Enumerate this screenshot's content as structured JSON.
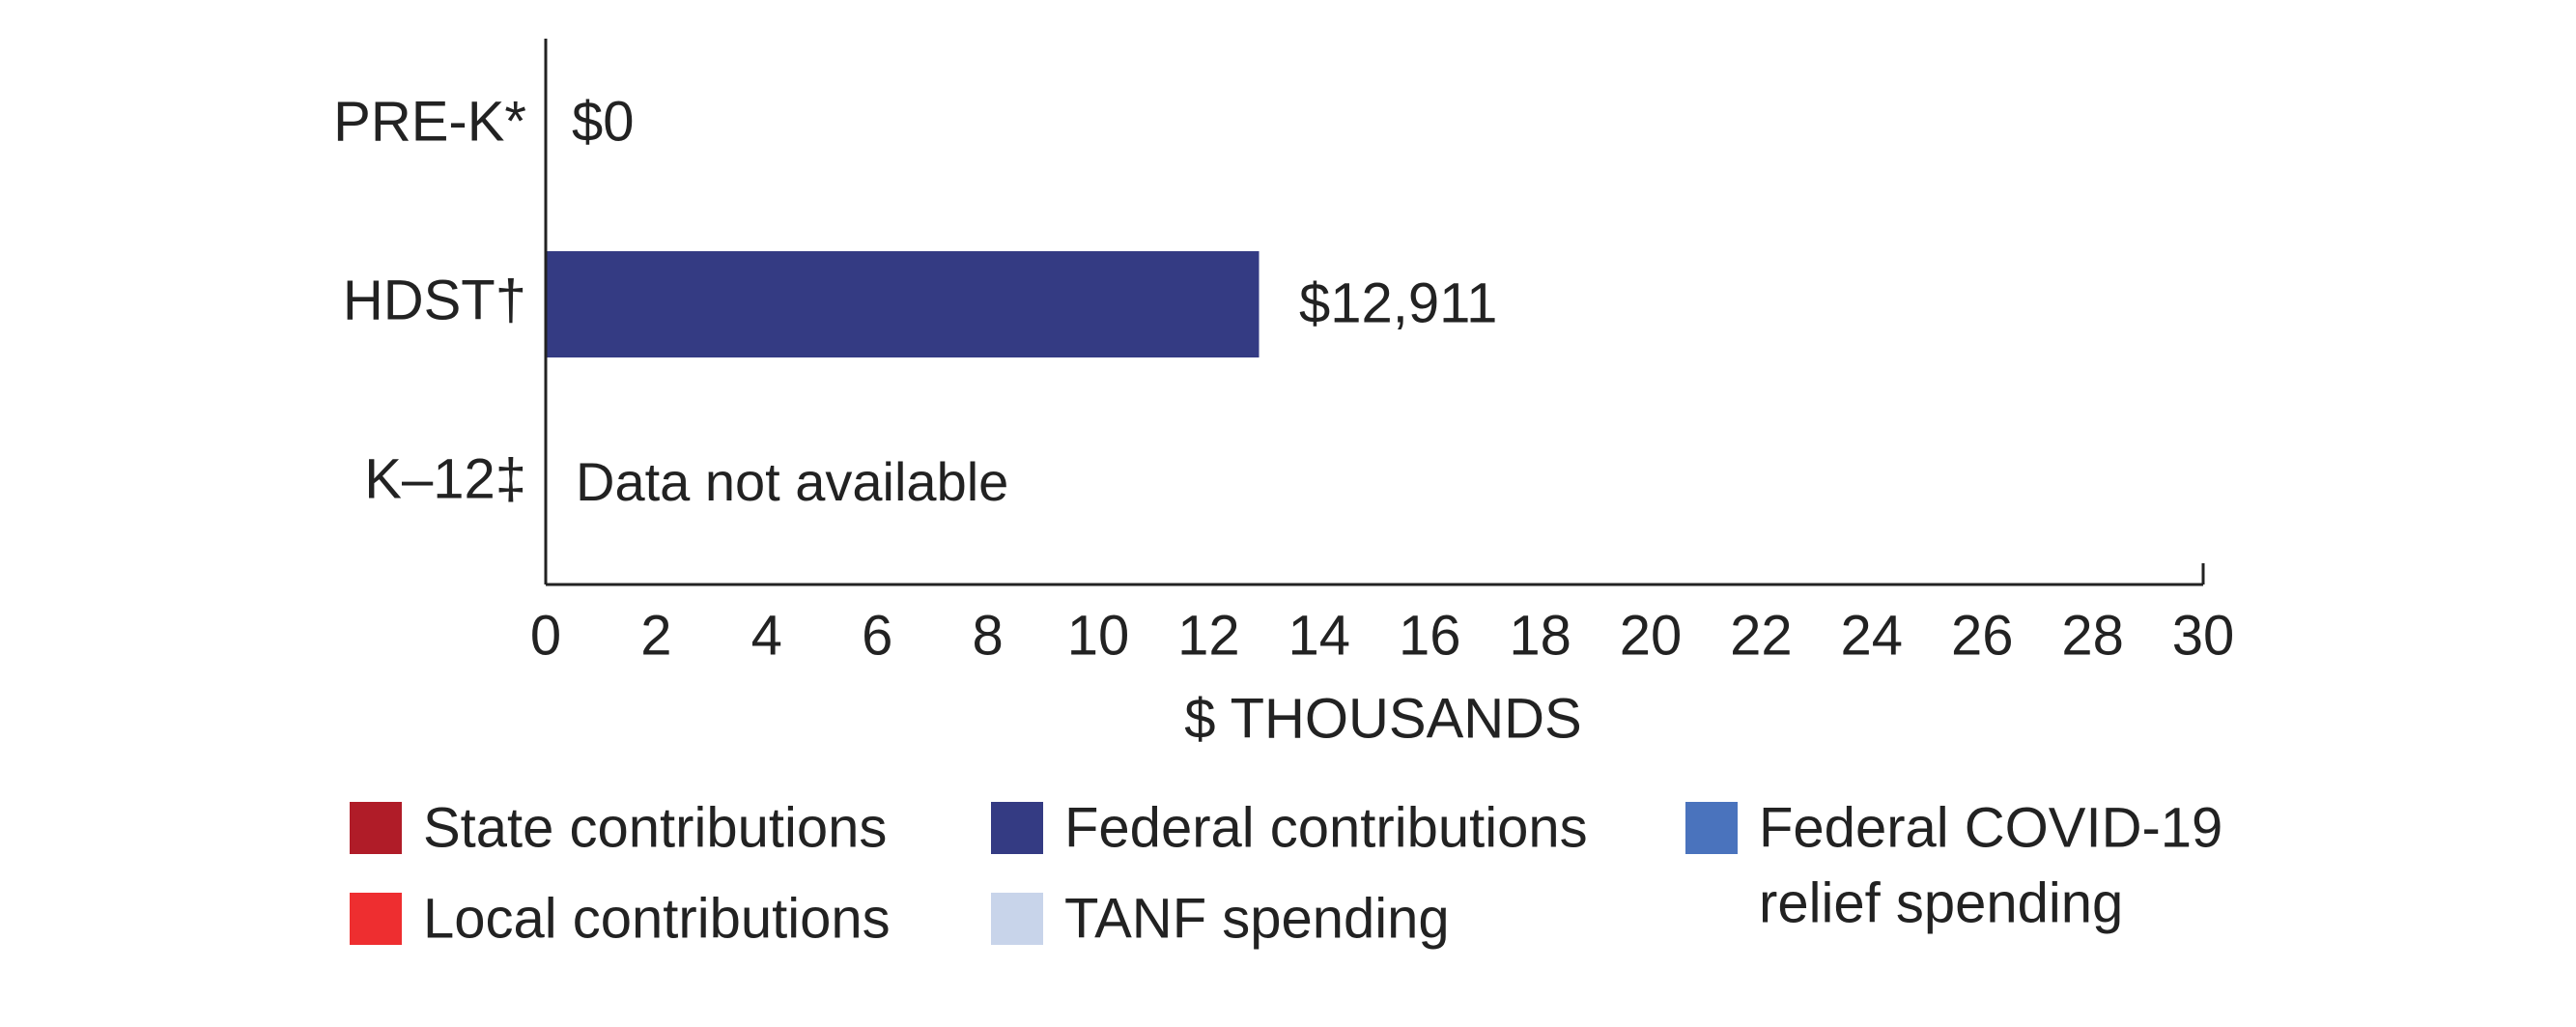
{
  "chart_data": {
    "type": "bar",
    "orientation": "horizontal",
    "categories": [
      "PRE-K*",
      "HDST†",
      "K–12‡"
    ],
    "series": [
      {
        "name": "State contributions",
        "values": [
          0,
          0,
          null
        ]
      },
      {
        "name": "Local contributions",
        "values": [
          0,
          0,
          null
        ]
      },
      {
        "name": "Federal contributions",
        "values": [
          0,
          12.911,
          null
        ]
      },
      {
        "name": "TANF spending",
        "values": [
          0,
          0,
          null
        ]
      },
      {
        "name": "Federal COVID-19 relief spending",
        "values": [
          0,
          0,
          null
        ]
      }
    ],
    "data_labels": [
      "$0",
      "$12,911",
      "Data not available"
    ],
    "xlabel": "$ THOUSANDS",
    "ylabel": "",
    "xlim": [
      0,
      30
    ],
    "xticks": [
      0,
      2,
      4,
      6,
      8,
      10,
      12,
      14,
      16,
      18,
      20,
      22,
      24,
      26,
      28,
      30
    ],
    "xtick_labels": [
      "0",
      "2",
      "4",
      "6",
      "8",
      "10",
      "12",
      "14",
      "16",
      "18",
      "20",
      "22",
      "24",
      "26",
      "28",
      "30"
    ],
    "grid": false,
    "legend_position": "bottom",
    "legend": [
      {
        "label_lines": [
          "State contributions"
        ],
        "color": "#b01c28"
      },
      {
        "label_lines": [
          "Federal contributions"
        ],
        "color": "#343b83"
      },
      {
        "label_lines": [
          "Federal COVID-19",
          "relief spending"
        ],
        "color": "#4a73bd"
      },
      {
        "label_lines": [
          "Local contributions"
        ],
        "color": "#ee2e30"
      },
      {
        "label_lines": [
          "TANF spending"
        ],
        "color": "#c8d4ea"
      }
    ]
  }
}
